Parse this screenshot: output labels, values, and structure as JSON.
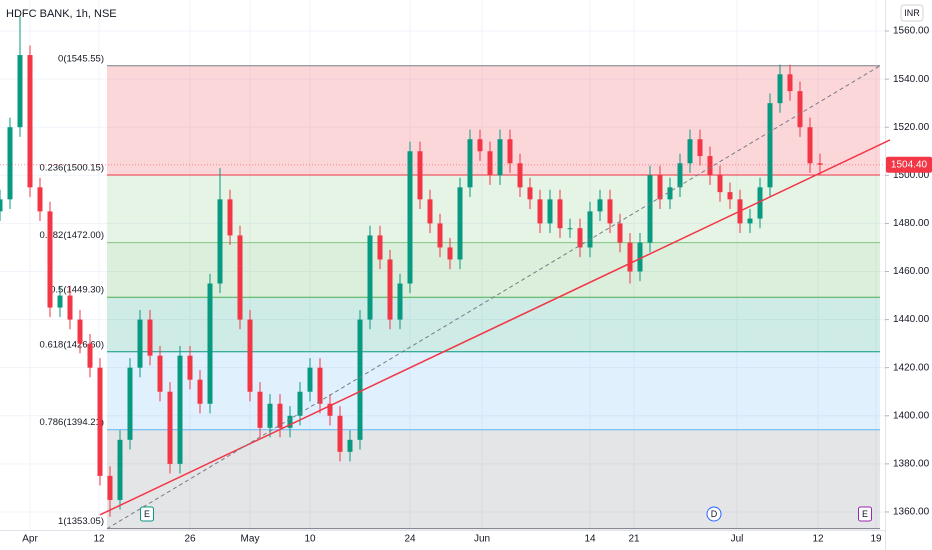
{
  "chart_data": {
    "type": "candlestick",
    "title": "HDFC BANK, 1h, NSE",
    "currency": "INR",
    "up_color": "#089981",
    "down_color": "#f23645",
    "open": [
      1485,
      1490,
      1520,
      1550,
      1495,
      1485,
      1445,
      1450,
      1440,
      1430,
      1420,
      1375,
      1365,
      1390,
      1420,
      1440,
      1425,
      1410,
      1380,
      1425,
      1415,
      1405,
      1455,
      1490,
      1475,
      1440,
      1410,
      1395,
      1405,
      1395,
      1400,
      1410,
      1420,
      1405,
      1400,
      1385,
      1390,
      1440,
      1475,
      1465,
      1440,
      1455,
      1510,
      1490,
      1480,
      1470,
      1465,
      1495,
      1515,
      1510,
      1500,
      1515,
      1505,
      1495,
      1490,
      1480,
      1490,
      1478,
      1478,
      1470,
      1485,
      1490,
      1480,
      1472,
      1460,
      1472,
      1500,
      1490,
      1495,
      1505,
      1515,
      1508,
      1500,
      1493,
      1490,
      1480,
      1482,
      1495,
      1530,
      1542,
      1535,
      1520,
      1505
    ],
    "high": [
      1494,
      1524,
      1566,
      1554,
      1499,
      1489,
      1454,
      1454,
      1444,
      1434,
      1424,
      1379,
      1394,
      1424,
      1444,
      1444,
      1429,
      1414,
      1429,
      1429,
      1419,
      1459,
      1503,
      1494,
      1479,
      1444,
      1414,
      1409,
      1409,
      1404,
      1414,
      1424,
      1424,
      1409,
      1404,
      1394,
      1444,
      1479,
      1479,
      1469,
      1459,
      1514,
      1514,
      1494,
      1484,
      1474,
      1499,
      1519,
      1519,
      1514,
      1519,
      1519,
      1509,
      1499,
      1494,
      1494,
      1494,
      1482,
      1482,
      1489,
      1494,
      1494,
      1484,
      1476,
      1476,
      1504,
      1504,
      1499,
      1509,
      1519,
      1519,
      1512,
      1504,
      1497,
      1494,
      1486,
      1499,
      1534,
      1546,
      1546,
      1539,
      1524,
      1509
    ],
    "low": [
      1481,
      1486,
      1516,
      1491,
      1481,
      1441,
      1441,
      1436,
      1426,
      1416,
      1371,
      1358,
      1361,
      1386,
      1416,
      1421,
      1406,
      1376,
      1376,
      1411,
      1401,
      1401,
      1451,
      1471,
      1436,
      1406,
      1391,
      1391,
      1391,
      1391,
      1396,
      1406,
      1401,
      1396,
      1381,
      1381,
      1386,
      1436,
      1461,
      1436,
      1436,
      1451,
      1486,
      1476,
      1466,
      1461,
      1461,
      1491,
      1506,
      1496,
      1496,
      1501,
      1491,
      1486,
      1476,
      1476,
      1474,
      1474,
      1466,
      1466,
      1481,
      1476,
      1468,
      1455,
      1456,
      1468,
      1486,
      1486,
      1491,
      1501,
      1504,
      1496,
      1489,
      1486,
      1476,
      1476,
      1478,
      1491,
      1526,
      1531,
      1516,
      1501,
      1500.4
    ],
    "close": [
      1490,
      1520,
      1550,
      1495,
      1485,
      1445,
      1450,
      1440,
      1430,
      1420,
      1375,
      1365,
      1390,
      1420,
      1440,
      1425,
      1410,
      1380,
      1425,
      1415,
      1405,
      1455,
      1490,
      1475,
      1440,
      1410,
      1395,
      1405,
      1395,
      1400,
      1410,
      1420,
      1405,
      1400,
      1385,
      1390,
      1440,
      1475,
      1465,
      1440,
      1455,
      1510,
      1490,
      1480,
      1470,
      1465,
      1495,
      1515,
      1510,
      1500,
      1515,
      1505,
      1495,
      1490,
      1480,
      1490,
      1478,
      1478,
      1470,
      1485,
      1490,
      1480,
      1472,
      1460,
      1472,
      1500,
      1490,
      1495,
      1505,
      1515,
      1508,
      1500,
      1493,
      1490,
      1480,
      1482,
      1495,
      1530,
      1542,
      1535,
      1520,
      1505,
      1504.4
    ],
    "xlim": [
      0,
      88.5
    ],
    "xticks": [
      {
        "value": 3,
        "label": "Apr"
      },
      {
        "value": 9.9,
        "label": "12"
      },
      {
        "value": 19,
        "label": "26"
      },
      {
        "value": 25,
        "label": "May"
      },
      {
        "value": 31,
        "label": "10"
      },
      {
        "value": 41,
        "label": "24"
      },
      {
        "value": 48.2,
        "label": "Jun"
      },
      {
        "value": 59,
        "label": "14"
      },
      {
        "value": 63.4,
        "label": "21"
      },
      {
        "value": 73.7,
        "label": "Jul"
      },
      {
        "value": 81.8,
        "label": "12"
      },
      {
        "value": 87.6,
        "label": "19"
      }
    ],
    "ylim": [
      1352.5,
      1572.9
    ],
    "yticks": [
      {
        "value": 1360,
        "label": "1360.00"
      },
      {
        "value": 1380,
        "label": "1380.00"
      },
      {
        "value": 1400,
        "label": "1400.00"
      },
      {
        "value": 1420,
        "label": "1420.00"
      },
      {
        "value": 1440,
        "label": "1440.00"
      },
      {
        "value": 1460,
        "label": "1460.00"
      },
      {
        "value": 1480,
        "label": "1480.00"
      },
      {
        "value": 1500,
        "label": "1500.00"
      },
      {
        "value": 1520,
        "label": "1520.00"
      },
      {
        "value": 1540,
        "label": "1540.00"
      },
      {
        "value": 1560,
        "label": "1560.00"
      }
    ],
    "grid": true,
    "fib_x": [
      10.7,
      88
    ],
    "fib_levels": [
      {
        "value": 1545.55,
        "label": "0(1545.55)",
        "color": "#787b86"
      },
      {
        "value": 1500.15,
        "label": "0.236(1500.15)",
        "color": "#f23645"
      },
      {
        "value": 1472.0,
        "label": "0.382(1472.00)",
        "color": "#81c784"
      },
      {
        "value": 1449.3,
        "label": "0.5(1449.30)",
        "color": "#4caf50"
      },
      {
        "value": 1426.6,
        "label": "0.618(1426.60)",
        "color": "#089981"
      },
      {
        "value": 1394.21,
        "label": "0.786(1394.21)",
        "color": "#64b5f6"
      },
      {
        "value": 1353.05,
        "label": "1(1353.05)",
        "color": "#787b86"
      }
    ],
    "fib_fills": [
      "rgba(242,54,69,0.2)",
      "rgba(129,199,132,0.2)",
      "rgba(76,175,80,0.2)",
      "rgba(8,153,129,0.2)",
      "rgba(100,181,246,0.2)",
      "rgba(120,123,134,0.2)"
    ],
    "trend_lines": [
      {
        "x": [
          10,
          89
        ],
        "y": [
          1358.8,
          1514.7
        ],
        "color": "#f23645",
        "dashed": false
      },
      {
        "x": [
          10.7,
          88
        ],
        "y": [
          1353.05,
          1545.55
        ],
        "color": "#787b86",
        "dashed": true
      }
    ],
    "events": [
      {
        "x": 14.7,
        "label": "E",
        "color": "#089981"
      },
      {
        "x": 71.4,
        "label": "D",
        "color": "#2962ff"
      },
      {
        "x": 86.5,
        "label": "E",
        "color": "#9c27b0"
      }
    ],
    "last_price": {
      "value": 1504.4,
      "label": "1504.40"
    }
  }
}
